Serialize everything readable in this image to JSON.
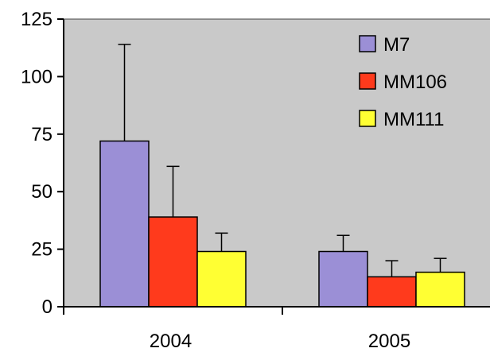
{
  "chart_data": {
    "type": "bar",
    "title": "",
    "xlabel": "",
    "ylabel": "",
    "categories": [
      "2004",
      "2005"
    ],
    "ylim": [
      0,
      125
    ],
    "yticks": [
      0,
      25,
      50,
      75,
      100,
      125
    ],
    "grid": false,
    "legend_position": "top-right",
    "error_bars": "upper",
    "series": [
      {
        "name": "M7",
        "color": "#9b8fd6",
        "values": [
          72,
          24
        ],
        "errors": [
          42,
          7
        ]
      },
      {
        "name": "MM106",
        "color": "#ff3a1c",
        "values": [
          39,
          13
        ],
        "errors": [
          22,
          7
        ]
      },
      {
        "name": "MM111",
        "color": "#ffff33",
        "values": [
          24,
          15
        ],
        "errors": [
          8,
          6
        ]
      }
    ],
    "colors": {
      "plot_background": "#c9c9c9",
      "page_background": "#ffffff",
      "axis": "#000000"
    }
  }
}
